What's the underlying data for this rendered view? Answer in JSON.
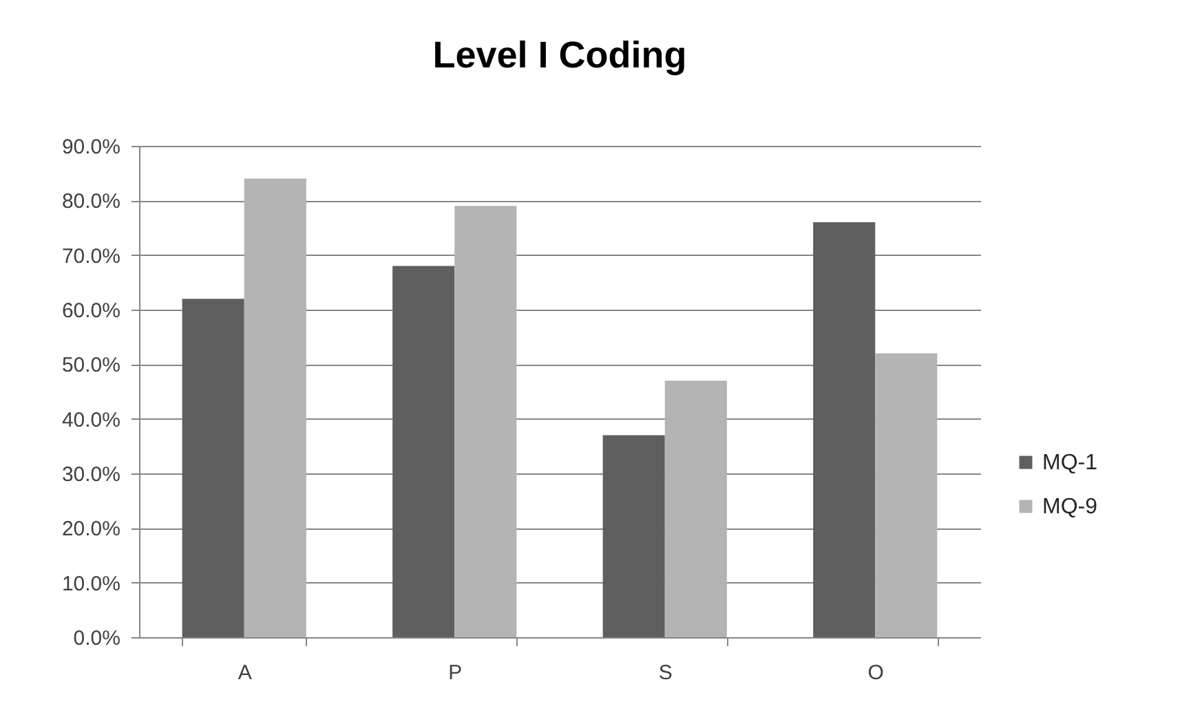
{
  "chart_data": {
    "type": "bar",
    "title": "Level I Coding",
    "categories": [
      "A",
      "P",
      "S",
      "O"
    ],
    "series": [
      {
        "name": "MQ-1",
        "color": "#5f5f5f",
        "values": [
          62,
          68,
          37,
          76
        ]
      },
      {
        "name": "MQ-9",
        "color": "#b4b4b4",
        "values": [
          84,
          79,
          47,
          52
        ]
      }
    ],
    "ylim": [
      0,
      90
    ],
    "yticks": [
      {
        "value": 0,
        "label": "0.0%"
      },
      {
        "value": 10,
        "label": "10.0%"
      },
      {
        "value": 20,
        "label": "20.0%"
      },
      {
        "value": 30,
        "label": "30.0%"
      },
      {
        "value": 40,
        "label": "40.0%"
      },
      {
        "value": 50,
        "label": "50.0%"
      },
      {
        "value": 60,
        "label": "60.0%"
      },
      {
        "value": 70,
        "label": "70.0%"
      },
      {
        "value": 80,
        "label": "80.0%"
      },
      {
        "value": 90,
        "label": "90.0%"
      }
    ],
    "grid": "y",
    "legend": "right"
  }
}
